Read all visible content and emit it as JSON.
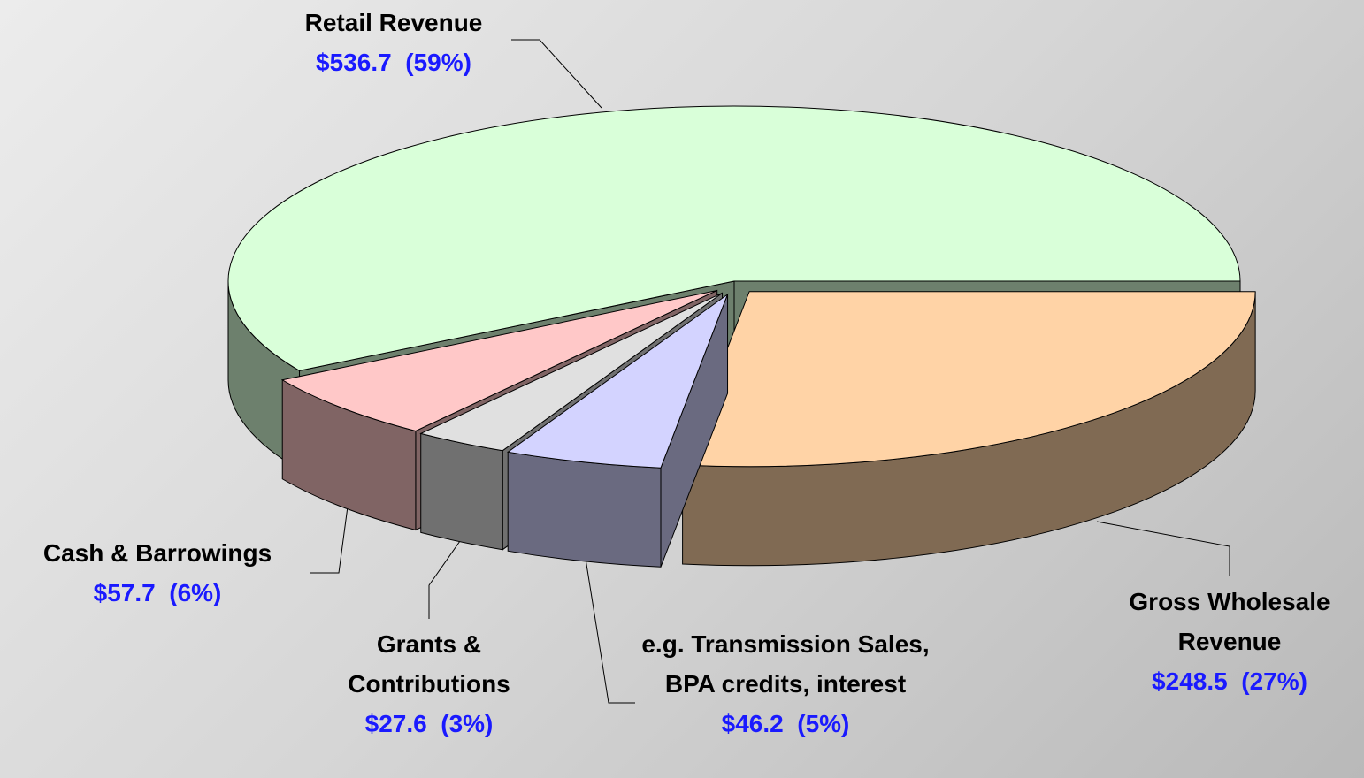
{
  "chart_data": {
    "type": "pie",
    "categories": [
      "Retail Revenue",
      "Gross Wholesale Revenue",
      "e.g. Transmission Sales, BPA credits, interest",
      "Grants & Contributions",
      "Cash & Barrowings"
    ],
    "values": [
      536.7,
      248.5,
      46.2,
      27.6,
      57.7
    ],
    "value_labels": [
      "$536.7  (59%)",
      "$248.5  (27%)",
      "$46.2  (5%)",
      "$27.6  (3%)",
      "$57.7  (6%)"
    ],
    "colors": [
      "#d9ffd9",
      "#ffd3a6",
      "#d3d3ff",
      "#e0e0e0",
      "#ffc8c8"
    ]
  }
}
